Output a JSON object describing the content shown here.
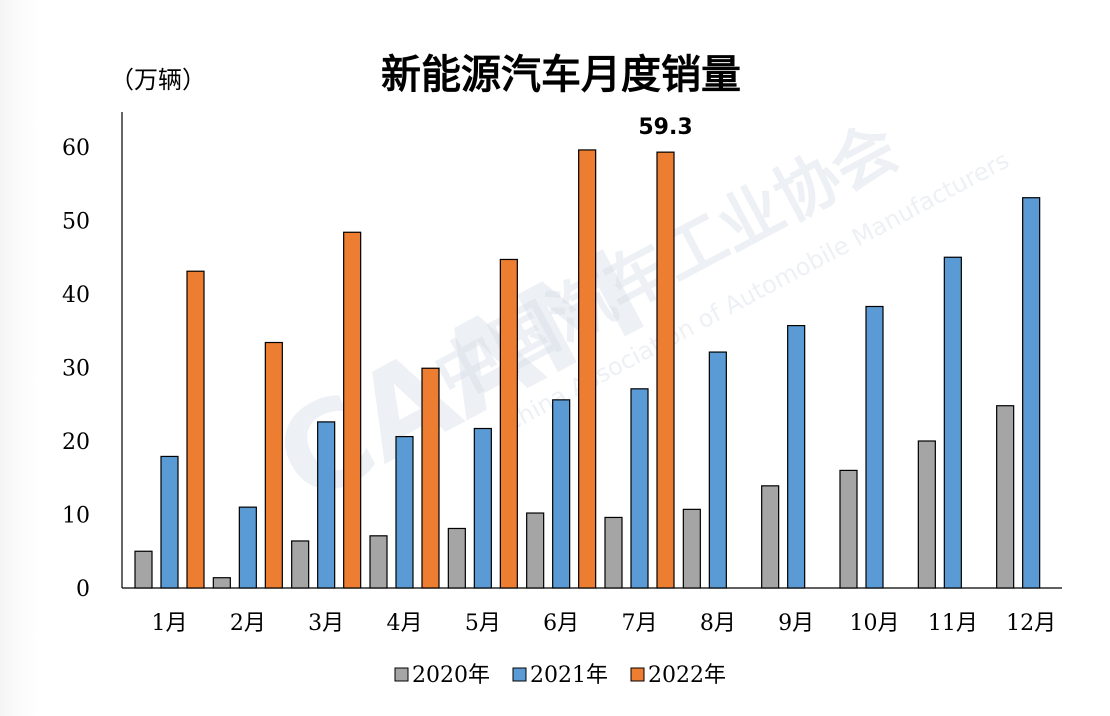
{
  "chart_data": {
    "type": "bar",
    "title": "新能源汽车月度销量",
    "ylabel": "（万辆）",
    "xlabel": "",
    "ylim": [
      0,
      60
    ],
    "yticks": [
      0,
      10,
      20,
      30,
      40,
      50,
      60
    ],
    "grid": false,
    "legend_position": "bottom",
    "categories": [
      "1月",
      "2月",
      "3月",
      "4月",
      "5月",
      "6月",
      "7月",
      "8月",
      "9月",
      "10月",
      "11月",
      "12月"
    ],
    "series": [
      {
        "name": "2020年",
        "color": "#a5a5a5",
        "values": [
          5.0,
          1.4,
          6.4,
          7.1,
          8.1,
          10.2,
          9.6,
          10.7,
          13.9,
          16.0,
          20.0,
          24.8
        ]
      },
      {
        "name": "2021年",
        "color": "#5b9bd5",
        "values": [
          17.9,
          11.0,
          22.6,
          20.6,
          21.7,
          25.6,
          27.1,
          32.1,
          35.7,
          38.3,
          45.0,
          53.1
        ]
      },
      {
        "name": "2022年",
        "color": "#ed7d31",
        "values": [
          43.1,
          33.4,
          48.4,
          29.9,
          44.7,
          59.6,
          59.3,
          null,
          null,
          null,
          null,
          null
        ]
      }
    ],
    "data_labels": [
      {
        "series": "2022年",
        "category": "7月",
        "text": "59.3"
      }
    ]
  },
  "watermark": {
    "brand": "中国汽车工业协会",
    "english": "China Association of Automobile Manufacturers",
    "logo": "CAAM",
    "color": "#d8dfe8"
  }
}
